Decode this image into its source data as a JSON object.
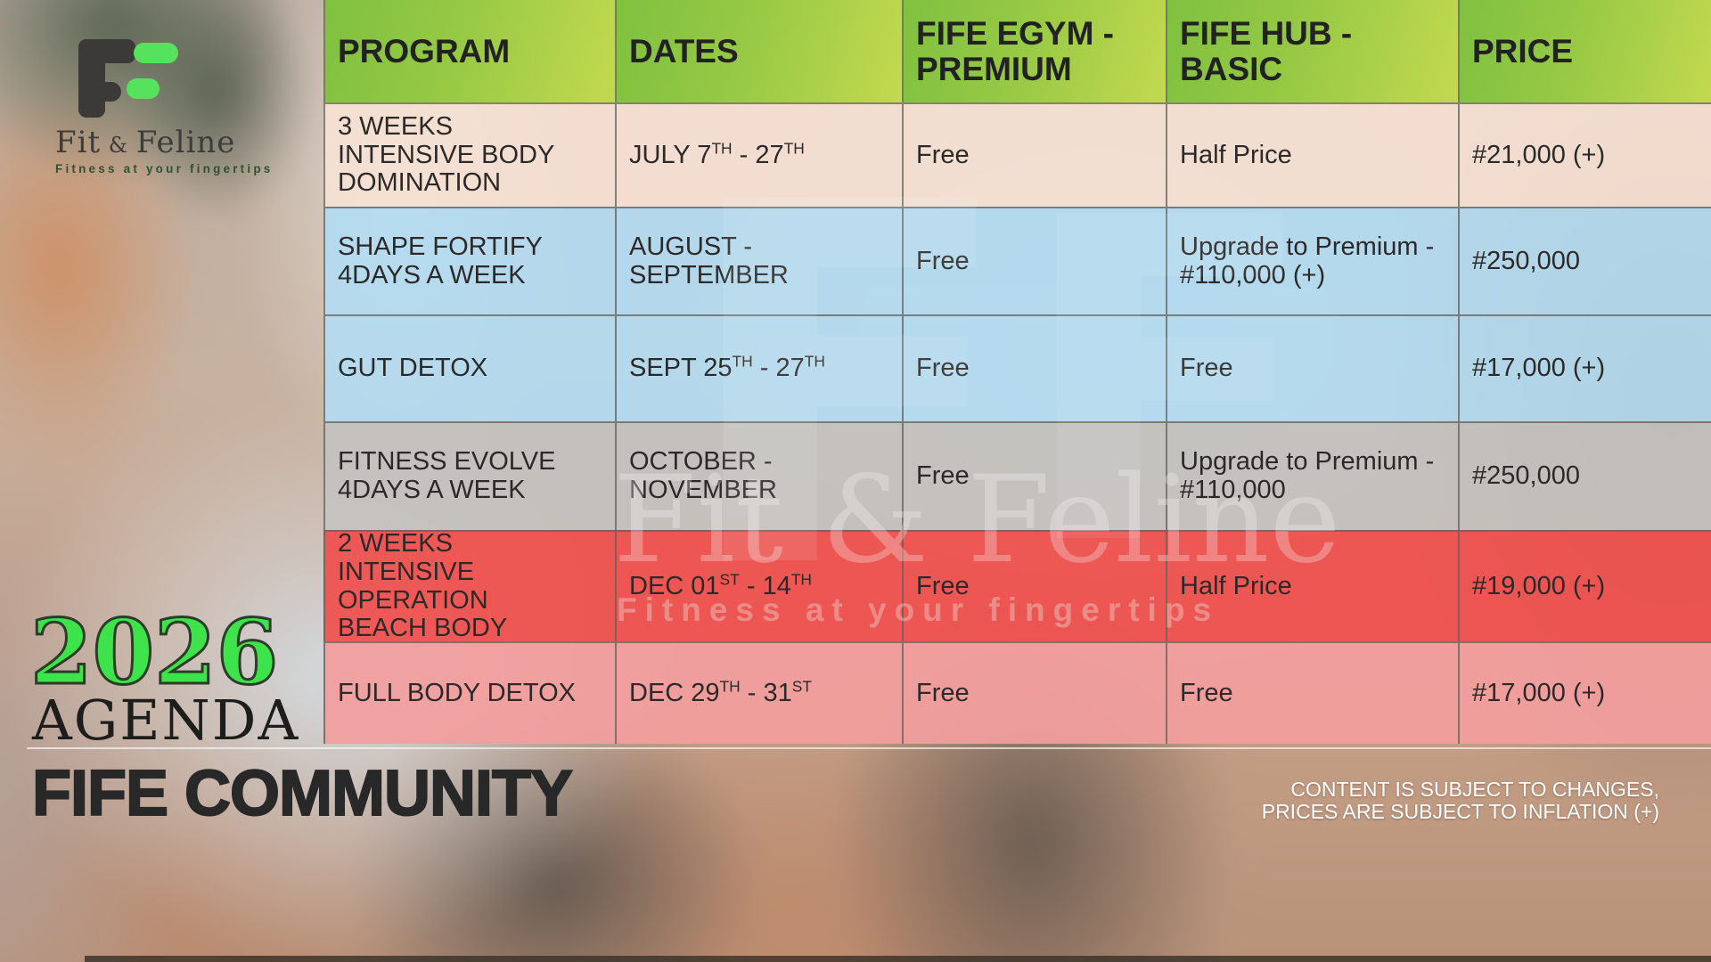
{
  "brand": {
    "name_first": "Fit",
    "name_amp": " & ",
    "name_last": "Feline",
    "tagline": "Fitness at your fingertips"
  },
  "year_badge": {
    "year": "2026",
    "label": "AGENDA"
  },
  "footer": {
    "title": "FIFE COMMUNITY",
    "disclaimer_line1": "CONTENT IS SUBJECT TO CHANGES,",
    "disclaimer_line2": "PRICES ARE SUBJECT TO INFLATION (+)"
  },
  "watermark": {
    "big_letter_1": "F",
    "big_letter_2": "F",
    "name": "Fit & Feline",
    "tagline": "Fitness at your fingertips"
  },
  "table": {
    "headers": [
      "PROGRAM",
      "DATES",
      "FIFE EGYM - PREMIUM",
      "FIFE HUB - BASIC",
      "PRICE"
    ],
    "rows": [
      {
        "program": "3 WEEKS INTENSIVE BODY DOMINATION",
        "dates": "JULY 7{TH} - 27{TH}",
        "egym": "Free",
        "hub": "Half Price",
        "price": "#21,000 (+)",
        "color": "peach"
      },
      {
        "program": "SHAPE FORTIFY 4DAYS A WEEK",
        "dates": "AUGUST - SEPTEMBER",
        "egym": "Free",
        "hub": "Upgrade to Premium - #110,000 (+)",
        "price": "#250,000",
        "color": "blue"
      },
      {
        "program": "GUT DETOX",
        "dates": "SEPT 25{TH} - 27{TH}",
        "egym": "Free",
        "hub": "Free",
        "price": "#17,000 (+)",
        "color": "blue"
      },
      {
        "program": "FITNESS EVOLVE 4DAYS A WEEK",
        "dates": "OCTOBER - NOVEMBER",
        "egym": "Free",
        "hub": "Upgrade to Premium - #110,000",
        "price": "#250,000",
        "color": "gray"
      },
      {
        "program": "2 WEEKS INTENSIVE OPERATION BEACH BODY",
        "dates": "DEC 01{ST} - 14{TH}",
        "egym": "Free",
        "hub": "Half Price",
        "price": "#19,000 (+)",
        "color": "red"
      },
      {
        "program": "FULL BODY DETOX",
        "dates": "DEC 29{TH} - 31{ST}",
        "egym": "Free",
        "hub": "Free",
        "price": "#17,000 (+)",
        "color": "pink"
      }
    ],
    "row_colors": {
      "peach": "rgba(247,226,213,0.90)",
      "blue": "rgba(178,219,243,0.90)",
      "gray": "rgba(196,194,192,0.93)",
      "red": "rgba(240,79,77,0.92)",
      "pink": "rgba(242,158,158,0.93)"
    },
    "colors": {
      "header_green_start": "#7fc140",
      "header_green_end": "#c3d94f",
      "accent_green": "#3ee24b",
      "logo_green": "#57e25e",
      "logo_dark": "#3b3a39"
    }
  }
}
